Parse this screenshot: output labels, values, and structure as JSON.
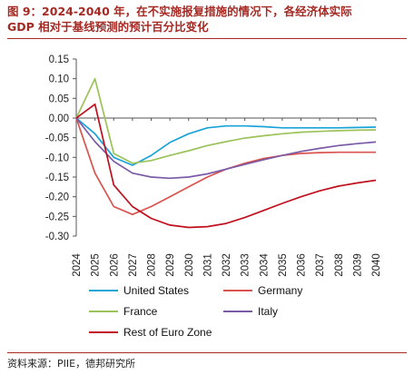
{
  "title": {
    "line1": "图 9：2024-2040 年，在不实施报复措施的情况下，各经济体实际",
    "line2": "GDP 相对于基线预测的预计百分比变化"
  },
  "source": "资料来源：PIIE，德邦研究所",
  "chart_data": {
    "type": "line",
    "x": [
      "2024",
      "2025",
      "2026",
      "2027",
      "2028",
      "2029",
      "2030",
      "2031",
      "2032",
      "2033",
      "2034",
      "2035",
      "2036",
      "2037",
      "2038",
      "2039",
      "2040"
    ],
    "ylim": [
      -0.3,
      0.15
    ],
    "yticks": [
      "0.15",
      "0.10",
      "0.05",
      "0.00",
      "-0.05",
      "-0.10",
      "-0.15",
      "-0.20",
      "-0.25",
      "-0.30"
    ],
    "ytick_values": [
      0.15,
      0.1,
      0.05,
      0.0,
      -0.05,
      -0.1,
      -0.15,
      -0.2,
      -0.25,
      -0.3
    ],
    "series": [
      {
        "name": "United States",
        "color": "#1aa3d9",
        "values": [
          0.0,
          -0.04,
          -0.1,
          -0.12,
          -0.095,
          -0.062,
          -0.04,
          -0.025,
          -0.02,
          -0.02,
          -0.022,
          -0.025,
          -0.025,
          -0.025,
          -0.025,
          -0.024,
          -0.023
        ]
      },
      {
        "name": "Germany",
        "color": "#d9534f",
        "values": [
          0.0,
          -0.14,
          -0.225,
          -0.245,
          -0.225,
          -0.2,
          -0.175,
          -0.15,
          -0.13,
          -0.115,
          -0.103,
          -0.095,
          -0.09,
          -0.088,
          -0.087,
          -0.087,
          -0.087
        ]
      },
      {
        "name": "France",
        "color": "#9bc35a",
        "values": [
          0.0,
          0.1,
          -0.09,
          -0.115,
          -0.108,
          -0.095,
          -0.083,
          -0.07,
          -0.06,
          -0.051,
          -0.045,
          -0.04,
          -0.036,
          -0.034,
          -0.032,
          -0.031,
          -0.03
        ]
      },
      {
        "name": "Italy",
        "color": "#7b5aa6",
        "values": [
          0.0,
          -0.06,
          -0.11,
          -0.14,
          -0.15,
          -0.153,
          -0.15,
          -0.142,
          -0.13,
          -0.118,
          -0.106,
          -0.095,
          -0.085,
          -0.077,
          -0.07,
          -0.065,
          -0.061
        ]
      },
      {
        "name": "Rest of Euro Zone",
        "color": "#c0101f",
        "values": [
          0.0,
          0.035,
          -0.17,
          -0.225,
          -0.255,
          -0.272,
          -0.278,
          -0.276,
          -0.268,
          -0.253,
          -0.235,
          -0.217,
          -0.2,
          -0.185,
          -0.173,
          -0.165,
          -0.158
        ]
      }
    ],
    "legend_position": "bottom",
    "grid": false
  }
}
